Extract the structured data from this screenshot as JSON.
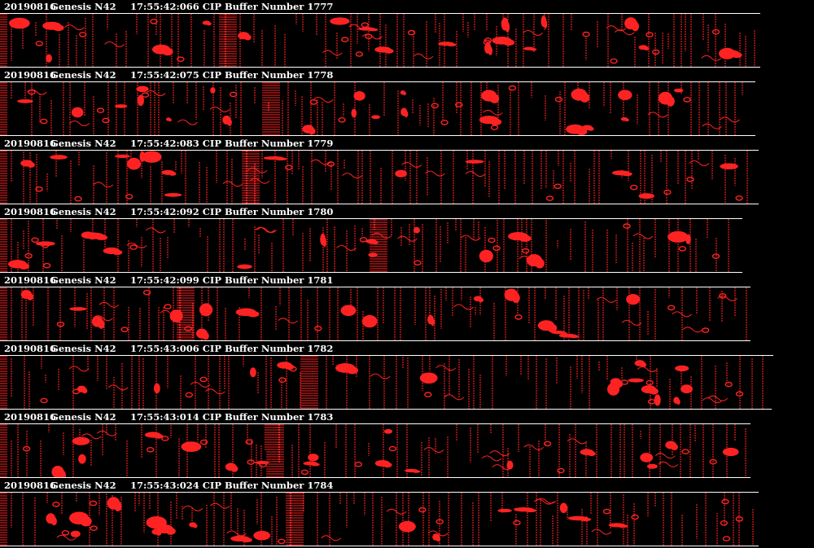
{
  "colors": {
    "background": "#000000",
    "particle": "#ff2222",
    "text": "#ffffff"
  },
  "frames": [
    {
      "date": "20190816",
      "probe": "Genesis N42",
      "timestamp": "17:55:42:066",
      "buffer_label": "CIP Buffer Number 1777"
    },
    {
      "date": "20190816",
      "probe": "Genesis N42",
      "timestamp": "17:55:42:075",
      "buffer_label": "CIP Buffer Number 1778"
    },
    {
      "date": "20190816",
      "probe": "Genesis N42",
      "timestamp": "17:55:42:083",
      "buffer_label": "CIP Buffer Number 1779"
    },
    {
      "date": "20190816",
      "probe": "Genesis N42",
      "timestamp": "17:55:42:092",
      "buffer_label": "CIP Buffer Number 1780"
    },
    {
      "date": "20190816",
      "probe": "Genesis N42",
      "timestamp": "17:55:42:099",
      "buffer_label": "CIP Buffer Number 1781"
    },
    {
      "date": "20190816",
      "probe": "Genesis N42",
      "timestamp": "17:55:43:006",
      "buffer_label": "CIP Buffer Number 1782"
    },
    {
      "date": "20190816",
      "probe": "Genesis N42",
      "timestamp": "17:55:43:014",
      "buffer_label": "CIP Buffer Number 1783"
    },
    {
      "date": "20190816",
      "probe": "Genesis N42",
      "timestamp": "17:55:43:024",
      "buffer_label": "CIP Buffer Number 1784"
    }
  ]
}
